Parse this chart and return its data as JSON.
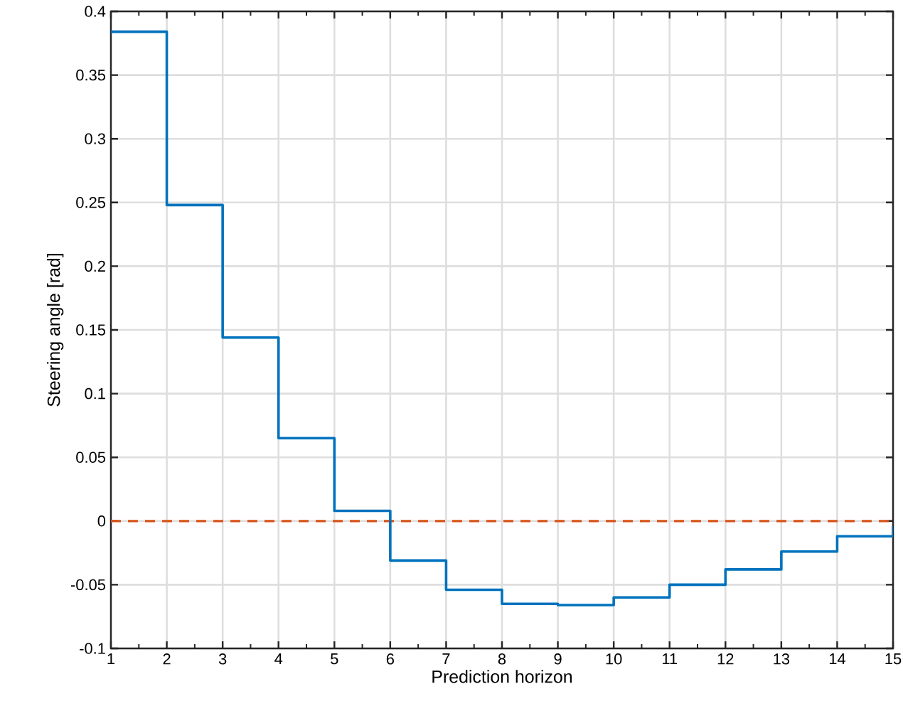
{
  "chart_data": {
    "type": "step",
    "xlabel": "Prediction horizon",
    "ylabel": "Steering angle [rad]",
    "x": [
      1,
      2,
      3,
      4,
      5,
      6,
      7,
      8,
      9,
      10,
      11,
      12,
      13,
      14,
      15
    ],
    "series": [
      {
        "color": "#0072bd",
        "values": [
          0.384,
          0.248,
          0.144,
          0.065,
          0.008,
          -0.031,
          -0.054,
          -0.065,
          -0.066,
          -0.06,
          -0.05,
          -0.038,
          -0.024,
          -0.012,
          -0.004
        ]
      }
    ],
    "ref_lines": [
      {
        "axis": "y",
        "value": 0,
        "color": "#d95319",
        "line_style": "dashed"
      }
    ],
    "xlim": [
      1,
      15
    ],
    "ylim": [
      -0.1,
      0.4
    ],
    "xticks": [
      1,
      2,
      3,
      4,
      5,
      6,
      7,
      8,
      9,
      10,
      11,
      12,
      13,
      14,
      15
    ],
    "yticks": [
      -0.1,
      -0.05,
      0,
      0.05,
      0.1,
      0.15,
      0.2,
      0.25,
      0.3,
      0.35,
      0.4
    ],
    "grid": true,
    "line_style": "solid"
  }
}
